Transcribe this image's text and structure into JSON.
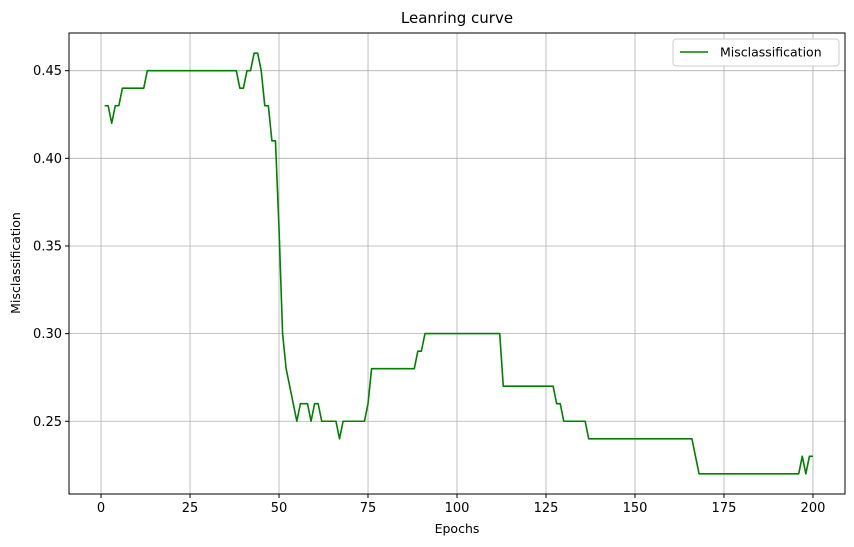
{
  "chart_data": {
    "type": "line",
    "title": "Leanring curve",
    "xlabel": "Epochs",
    "ylabel": "Misclassification",
    "xlim": [
      -9,
      209
    ],
    "ylim": [
      0.2085,
      0.4715
    ],
    "xticks": [
      0,
      25,
      50,
      75,
      100,
      125,
      150,
      175,
      200
    ],
    "yticks": [
      0.25,
      0.3,
      0.35,
      0.4,
      0.45
    ],
    "ytick_labels": [
      "0.25",
      "0.30",
      "0.35",
      "0.40",
      "0.45"
    ],
    "grid": true,
    "legend_position": "top-right",
    "line_color": "#008000",
    "series": [
      {
        "name": "Misclassification",
        "x": [
          1,
          2,
          3,
          4,
          5,
          6,
          7,
          8,
          9,
          10,
          11,
          12,
          13,
          14,
          15,
          20,
          25,
          30,
          35,
          38,
          39,
          40,
          41,
          42,
          43,
          44,
          45,
          46,
          47,
          48,
          49,
          50,
          51,
          52,
          53,
          54,
          55,
          56,
          57,
          58,
          59,
          60,
          61,
          62,
          63,
          64,
          65,
          66,
          67,
          68,
          69,
          70,
          71,
          72,
          73,
          74,
          75,
          76,
          77,
          80,
          85,
          88,
          89,
          90,
          91,
          95,
          100,
          105,
          110,
          112,
          113,
          115,
          120,
          125,
          127,
          128,
          129,
          130,
          131,
          135,
          136,
          137,
          140,
          150,
          160,
          166,
          167,
          168,
          170,
          180,
          190,
          196,
          197,
          198,
          199,
          200
        ],
        "y": [
          0.43,
          0.43,
          0.42,
          0.43,
          0.43,
          0.44,
          0.44,
          0.44,
          0.44,
          0.44,
          0.44,
          0.44,
          0.45,
          0.45,
          0.45,
          0.45,
          0.45,
          0.45,
          0.45,
          0.45,
          0.44,
          0.44,
          0.45,
          0.45,
          0.46,
          0.46,
          0.45,
          0.43,
          0.43,
          0.41,
          0.41,
          0.36,
          0.3,
          0.28,
          0.27,
          0.26,
          0.25,
          0.26,
          0.26,
          0.26,
          0.25,
          0.26,
          0.26,
          0.25,
          0.25,
          0.25,
          0.25,
          0.25,
          0.24,
          0.25,
          0.25,
          0.25,
          0.25,
          0.25,
          0.25,
          0.25,
          0.26,
          0.28,
          0.28,
          0.28,
          0.28,
          0.28,
          0.29,
          0.29,
          0.3,
          0.3,
          0.3,
          0.3,
          0.3,
          0.3,
          0.27,
          0.27,
          0.27,
          0.27,
          0.27,
          0.26,
          0.26,
          0.25,
          0.25,
          0.25,
          0.25,
          0.24,
          0.24,
          0.24,
          0.24,
          0.24,
          0.23,
          0.22,
          0.22,
          0.22,
          0.22,
          0.22,
          0.23,
          0.22,
          0.23,
          0.23
        ]
      }
    ]
  }
}
